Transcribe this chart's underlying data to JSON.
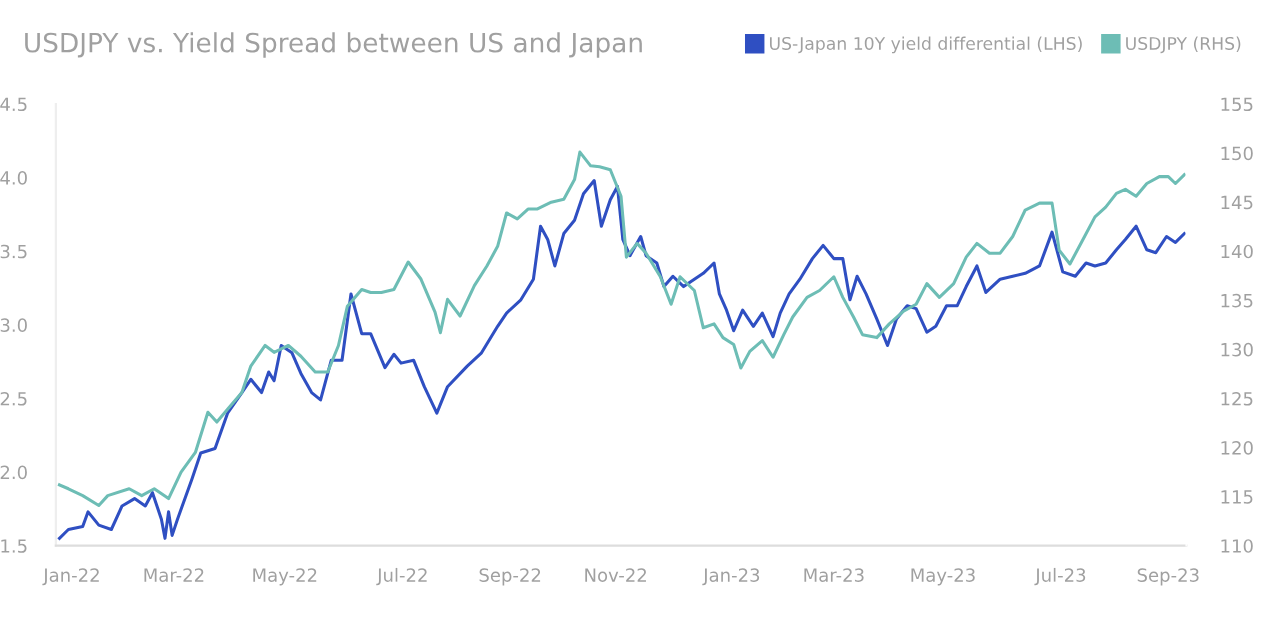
{
  "chart_data": {
    "type": "line",
    "title": "USDJPY vs. Yield Spread between US and Japan",
    "xlim": [
      "2022-01-01",
      "2023-09-25"
    ],
    "xticks": [
      {
        "value": "2022-01-10",
        "label": "Jan-22"
      },
      {
        "value": "2022-03-08",
        "label": "Mar-22"
      },
      {
        "value": "2022-05-09",
        "label": "May-22"
      },
      {
        "value": "2022-07-14",
        "label": "Jul-22"
      },
      {
        "value": "2022-09-12",
        "label": "Sep-22"
      },
      {
        "value": "2022-11-10",
        "label": "Nov-22"
      },
      {
        "value": "2023-01-14",
        "label": "Jan-23"
      },
      {
        "value": "2023-03-12",
        "label": "Mar-23"
      },
      {
        "value": "2023-05-12",
        "label": "May-23"
      },
      {
        "value": "2023-07-17",
        "label": "Jul-23"
      },
      {
        "value": "2023-09-15",
        "label": "Sep-23"
      }
    ],
    "ylim": [
      1.5,
      4.5
    ],
    "yticks": [
      1.5,
      {
        "value": 2,
        "label": "2.0"
      },
      2.5,
      {
        "value": 3,
        "label": "3.0"
      },
      3.5,
      {
        "value": 4,
        "label": "4.0"
      },
      4.5
    ],
    "y2lim": [
      110,
      155
    ],
    "y2ticks": [
      110,
      115,
      120,
      125,
      130,
      135,
      140,
      145,
      150,
      155
    ],
    "grid": false,
    "legend": "top right",
    "marker": "none",
    "line_style": "solid",
    "series": [
      {
        "name": "US-Japan 10Y yield differential (LHS)",
        "color": "#2f4fc2",
        "axis": "y",
        "x": [
          "2022-01-03",
          "2022-01-08",
          "2022-01-16",
          "2022-01-19",
          "2022-01-25",
          "2022-02-01",
          "2022-02-07",
          "2022-02-14",
          "2022-02-20",
          "2022-02-24",
          "2022-03-01",
          "2022-03-03",
          "2022-03-05",
          "2022-03-07",
          "2022-03-10",
          "2022-03-18",
          "2022-03-23",
          "2022-03-31",
          "2022-04-07",
          "2022-04-15",
          "2022-04-20",
          "2022-04-26",
          "2022-04-30",
          "2022-05-03",
          "2022-05-07",
          "2022-05-13",
          "2022-05-18",
          "2022-05-24",
          "2022-05-29",
          "2022-06-04",
          "2022-06-10",
          "2022-06-15",
          "2022-06-21",
          "2022-06-26",
          "2022-07-04",
          "2022-07-09",
          "2022-07-13",
          "2022-07-20",
          "2022-07-26",
          "2022-08-02",
          "2022-08-08",
          "2022-08-19",
          "2022-08-27",
          "2022-09-05",
          "2022-09-10",
          "2022-09-18",
          "2022-09-25",
          "2022-09-29",
          "2022-10-03",
          "2022-10-07",
          "2022-10-12",
          "2022-10-18",
          "2022-10-23",
          "2022-10-29",
          "2022-11-02",
          "2022-11-07",
          "2022-11-11",
          "2022-11-14",
          "2022-11-18",
          "2022-11-24",
          "2022-11-27",
          "2022-12-03",
          "2022-12-07",
          "2022-12-12",
          "2022-12-18",
          "2022-12-24",
          "2022-12-29",
          "2023-01-04",
          "2023-01-07",
          "2023-01-11",
          "2023-01-15",
          "2023-01-20",
          "2023-01-26",
          "2023-01-31",
          "2023-02-06",
          "2023-02-10",
          "2023-02-15",
          "2023-02-21",
          "2023-02-28",
          "2023-03-06",
          "2023-03-12",
          "2023-03-17",
          "2023-03-21",
          "2023-03-25",
          "2023-03-30",
          "2023-04-05",
          "2023-04-11",
          "2023-04-16",
          "2023-04-22",
          "2023-04-27",
          "2023-05-03",
          "2023-05-08",
          "2023-05-14",
          "2023-05-20",
          "2023-05-25",
          "2023-05-31",
          "2023-06-05",
          "2023-06-13",
          "2023-06-20",
          "2023-06-27",
          "2023-07-05",
          "2023-07-12",
          "2023-07-18",
          "2023-07-25",
          "2023-07-31",
          "2023-08-05",
          "2023-08-11",
          "2023-08-17",
          "2023-08-22",
          "2023-08-28",
          "2023-09-03",
          "2023-09-08",
          "2023-09-14",
          "2023-09-19",
          "2023-09-24"
        ],
        "values": [
          1.55,
          1.61,
          1.63,
          1.73,
          1.64,
          1.61,
          1.77,
          1.82,
          1.77,
          1.86,
          1.68,
          1.55,
          1.73,
          1.57,
          1.68,
          1.95,
          2.13,
          2.16,
          2.4,
          2.54,
          2.63,
          2.54,
          2.68,
          2.62,
          2.86,
          2.81,
          2.67,
          2.54,
          2.49,
          2.76,
          2.76,
          3.21,
          2.94,
          2.94,
          2.71,
          2.8,
          2.74,
          2.76,
          2.58,
          2.4,
          2.58,
          2.72,
          2.81,
          2.99,
          3.08,
          3.17,
          3.31,
          3.67,
          3.58,
          3.4,
          3.62,
          3.71,
          3.89,
          3.98,
          3.67,
          3.85,
          3.94,
          3.58,
          3.47,
          3.6,
          3.47,
          3.42,
          3.26,
          3.33,
          3.26,
          3.31,
          3.35,
          3.42,
          3.21,
          3.1,
          2.96,
          3.1,
          2.99,
          3.08,
          2.92,
          3.08,
          3.21,
          3.31,
          3.45,
          3.54,
          3.45,
          3.45,
          3.17,
          3.33,
          3.21,
          3.04,
          2.86,
          3.04,
          3.13,
          3.11,
          2.95,
          2.99,
          3.13,
          3.13,
          3.26,
          3.4,
          3.22,
          3.31,
          3.33,
          3.35,
          3.4,
          3.63,
          3.36,
          3.33,
          3.42,
          3.4,
          3.42,
          3.51,
          3.58,
          3.67,
          3.51,
          3.49,
          3.6,
          3.56,
          3.62
        ]
      },
      {
        "name": "USDJPY (RHS)",
        "color": "#6dbdb5",
        "axis": "y2",
        "x": [
          "2022-01-03",
          "2022-01-08",
          "2022-01-16",
          "2022-01-25",
          "2022-01-30",
          "2022-02-11",
          "2022-02-18",
          "2022-02-25",
          "2022-03-05",
          "2022-03-12",
          "2022-03-20",
          "2022-03-27",
          "2022-04-01",
          "2022-04-07",
          "2022-04-15",
          "2022-04-20",
          "2022-04-28",
          "2022-05-03",
          "2022-05-11",
          "2022-05-18",
          "2022-05-26",
          "2022-06-02",
          "2022-06-08",
          "2022-06-13",
          "2022-06-21",
          "2022-06-26",
          "2022-07-02",
          "2022-07-09",
          "2022-07-17",
          "2022-07-24",
          "2022-08-01",
          "2022-08-04",
          "2022-08-08",
          "2022-08-15",
          "2022-08-23",
          "2022-08-30",
          "2022-09-05",
          "2022-09-10",
          "2022-09-16",
          "2022-09-22",
          "2022-09-27",
          "2022-10-05",
          "2022-10-12",
          "2022-10-18",
          "2022-10-21",
          "2022-10-27",
          "2022-11-01",
          "2022-11-07",
          "2022-11-13",
          "2022-11-16",
          "2022-11-22",
          "2022-11-27",
          "2022-12-05",
          "2022-12-11",
          "2022-12-16",
          "2022-12-24",
          "2022-12-29",
          "2023-01-04",
          "2023-01-09",
          "2023-01-15",
          "2023-01-19",
          "2023-01-24",
          "2023-01-31",
          "2023-02-06",
          "2023-02-12",
          "2023-02-17",
          "2023-02-25",
          "2023-03-04",
          "2023-03-12",
          "2023-03-17",
          "2023-03-23",
          "2023-03-28",
          "2023-04-05",
          "2023-04-12",
          "2023-04-20",
          "2023-04-27",
          "2023-05-03",
          "2023-05-10",
          "2023-05-18",
          "2023-05-25",
          "2023-05-31",
          "2023-06-07",
          "2023-06-13",
          "2023-06-20",
          "2023-06-27",
          "2023-07-05",
          "2023-07-12",
          "2023-07-16",
          "2023-07-22",
          "2023-07-29",
          "2023-08-05",
          "2023-08-11",
          "2023-08-17",
          "2023-08-22",
          "2023-08-28",
          "2023-09-03",
          "2023-09-10",
          "2023-09-15",
          "2023-09-19",
          "2023-09-24"
        ],
        "values": [
          116.2,
          115.8,
          115.1,
          114.1,
          115.1,
          115.8,
          115.1,
          115.8,
          114.8,
          117.5,
          119.5,
          123.6,
          122.6,
          123.9,
          125.6,
          128.3,
          130.4,
          129.7,
          130.4,
          129.3,
          127.7,
          127.7,
          130.4,
          134.4,
          136.1,
          135.8,
          135.8,
          136.1,
          138.9,
          137.2,
          133.8,
          131.7,
          135.1,
          133.4,
          136.5,
          138.5,
          140.5,
          143.9,
          143.3,
          144.3,
          144.3,
          145.0,
          145.3,
          147.3,
          150.1,
          148.7,
          148.6,
          148.3,
          145.6,
          139.4,
          140.8,
          139.8,
          137.4,
          134.6,
          137.4,
          136.0,
          132.2,
          132.6,
          131.2,
          130.5,
          128.1,
          129.8,
          130.9,
          129.2,
          131.5,
          133.3,
          135.3,
          136.0,
          137.4,
          135.3,
          133.3,
          131.5,
          131.2,
          132.6,
          133.9,
          134.6,
          136.7,
          135.3,
          136.7,
          139.4,
          140.8,
          139.8,
          139.8,
          141.5,
          144.2,
          144.9,
          144.9,
          140.1,
          138.7,
          141.1,
          143.5,
          144.5,
          145.9,
          146.3,
          145.6,
          146.9,
          147.6,
          147.6,
          146.9,
          147.8
        ]
      }
    ]
  }
}
